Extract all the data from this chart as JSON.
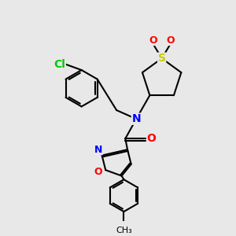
{
  "bg_color": "#e8e8e8",
  "bond_color": "#000000",
  "bond_lw": 1.5,
  "atom_colors": {
    "N": "#0000ff",
    "O": "#ff0000",
    "S": "#cccc00",
    "Cl": "#00cc00",
    "C": "#000000"
  },
  "font_size": 9,
  "fig_size": [
    3.0,
    3.0
  ],
  "dpi": 100
}
